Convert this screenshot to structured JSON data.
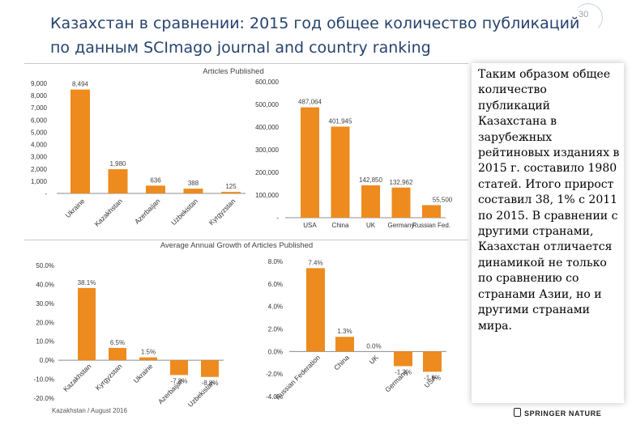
{
  "slide": {
    "title_line1": "Казахстан в сравнении: 2015 год общее количество публикаций",
    "title_line2": "по данным SCImago journal and country ranking",
    "page_number": "30"
  },
  "side_text": "Таким образом общее количество публикаций Казахстана в зарубежных рейтиновых изданиях в 2015 г. составило 1980 статей. Итого прирост составил 38, 1% с 2011 по 2015. В сравнении с другими странами, Казахстан отличается динамикой не только по сравнению со странами Азии, но и другими странами мира.",
  "footer": {
    "source": "Kazakhstan / August 2016",
    "publisher": "SPRINGER NATURE"
  },
  "colors": {
    "bar": "#ed8b1e",
    "axis": "#8c8c8c",
    "title": "#27436e"
  },
  "chart_data": [
    {
      "type": "bar",
      "title": "Articles Published",
      "categories": [
        "Ukraine",
        "Kazakhstan",
        "Azerbaijan",
        "Uzbekistan",
        "Kyrgyzstan"
      ],
      "values": [
        8494,
        1980,
        636,
        388,
        125
      ],
      "value_labels": [
        "8,494",
        "1,980",
        "636",
        "388",
        "125"
      ],
      "ylim": [
        0,
        9000
      ],
      "yticks": [
        "-",
        "1,000",
        "2,000",
        "3,000",
        "4,000",
        "5,000",
        "6,000",
        "7,000",
        "8,000",
        "9,000"
      ],
      "grid": false
    },
    {
      "type": "bar",
      "title": "",
      "categories": [
        "USA",
        "China",
        "UK",
        "Germany",
        "Russian Fed."
      ],
      "values": [
        487064,
        401945,
        142850,
        132962,
        55500
      ],
      "value_labels": [
        "487,064",
        "401,945",
        "142,850",
        "132,962",
        "55,500"
      ],
      "ylim": [
        0,
        600000
      ],
      "yticks": [
        "-",
        "100,000",
        "200,000",
        "300,000",
        "400,000",
        "500,000",
        "600,000"
      ],
      "grid": false
    },
    {
      "type": "bar",
      "title": "Average Annual Growth of Articles Published",
      "categories": [
        "Kazakhstan",
        "Kyrgyzstan",
        "Ukraine",
        "Azerbaijan",
        "Uzbekistan"
      ],
      "values": [
        38.1,
        6.5,
        1.5,
        -7.8,
        -8.8
      ],
      "value_labels": [
        "38.1%",
        "6.5%",
        "1.5%",
        "-7.8%",
        "-8.8%"
      ],
      "ylim": [
        -20,
        50
      ],
      "yticks": [
        "-20.0%",
        "-10.0%",
        "0.0%",
        "10.0%",
        "20.0%",
        "30.0%",
        "40.0%",
        "50.0%"
      ],
      "grid": false
    },
    {
      "type": "bar",
      "title": "",
      "categories": [
        "Russian Federation",
        "China",
        "UK",
        "Germany",
        "USA"
      ],
      "values": [
        7.4,
        1.3,
        0.0,
        -1.3,
        -1.8
      ],
      "value_labels": [
        "7.4%",
        "1.3%",
        "0.0%",
        "-1.3%",
        "-1.8%"
      ],
      "ylim": [
        -4,
        8
      ],
      "yticks": [
        "-4.0%",
        "-2.0%",
        "0.0%",
        "2.0%",
        "4.0%",
        "6.0%",
        "8.0%"
      ],
      "grid": false
    }
  ]
}
